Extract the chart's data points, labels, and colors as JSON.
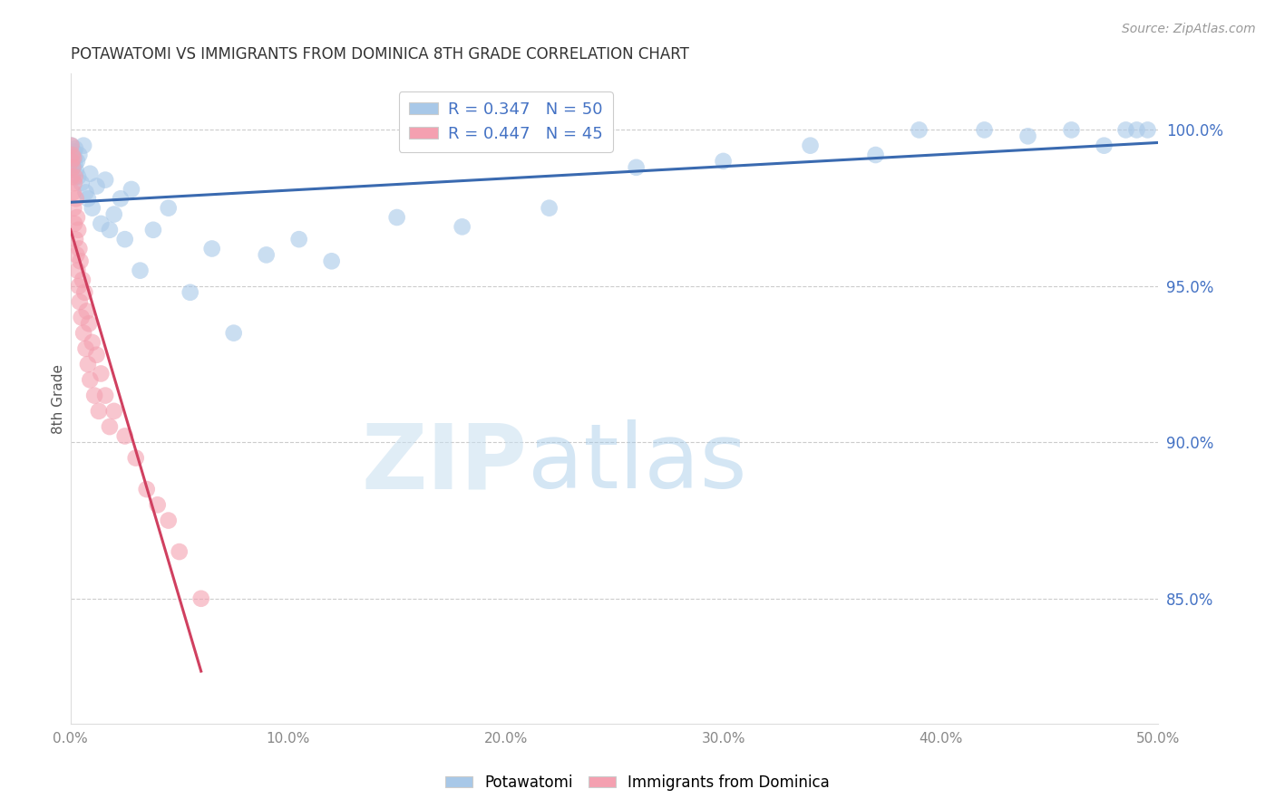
{
  "title": "POTAWATOMI VS IMMIGRANTS FROM DOMINICA 8TH GRADE CORRELATION CHART",
  "source": "Source: ZipAtlas.com",
  "ylabel": "8th Grade",
  "y_ticks": [
    85.0,
    90.0,
    95.0,
    100.0
  ],
  "x_min": 0.0,
  "x_max": 50.0,
  "y_min": 81.0,
  "y_max": 101.8,
  "blue_r": 0.347,
  "blue_n": 50,
  "pink_r": 0.447,
  "pink_n": 45,
  "blue_color": "#a8c8e8",
  "pink_color": "#f4a0b0",
  "blue_line_color": "#3a6ab0",
  "pink_line_color": "#d04060",
  "blue_scatter_x": [
    0.05,
    0.08,
    0.1,
    0.12,
    0.15,
    0.18,
    0.2,
    0.22,
    0.25,
    0.3,
    0.35,
    0.4,
    0.5,
    0.6,
    0.7,
    0.8,
    0.9,
    1.0,
    1.2,
    1.4,
    1.6,
    1.8,
    2.0,
    2.3,
    2.5,
    2.8,
    3.2,
    3.8,
    4.5,
    5.5,
    6.5,
    7.5,
    9.0,
    10.5,
    12.0,
    15.0,
    18.0,
    22.0,
    26.0,
    30.0,
    34.0,
    37.0,
    39.0,
    42.0,
    44.0,
    46.0,
    47.5,
    48.5,
    49.0,
    49.5
  ],
  "blue_scatter_y": [
    99.5,
    99.2,
    99.0,
    98.8,
    99.3,
    99.1,
    98.9,
    99.4,
    98.7,
    99.0,
    98.5,
    99.2,
    98.3,
    99.5,
    98.0,
    97.8,
    98.6,
    97.5,
    98.2,
    97.0,
    98.4,
    96.8,
    97.3,
    97.8,
    96.5,
    98.1,
    95.5,
    96.8,
    97.5,
    94.8,
    96.2,
    93.5,
    96.0,
    96.5,
    95.8,
    97.2,
    96.9,
    97.5,
    98.8,
    99.0,
    99.5,
    99.2,
    100.0,
    100.0,
    99.8,
    100.0,
    99.5,
    100.0,
    100.0,
    100.0
  ],
  "pink_scatter_x": [
    0.03,
    0.05,
    0.07,
    0.08,
    0.1,
    0.12,
    0.14,
    0.15,
    0.17,
    0.18,
    0.2,
    0.22,
    0.25,
    0.28,
    0.3,
    0.32,
    0.35,
    0.38,
    0.4,
    0.42,
    0.45,
    0.5,
    0.55,
    0.6,
    0.65,
    0.7,
    0.75,
    0.8,
    0.85,
    0.9,
    1.0,
    1.1,
    1.2,
    1.3,
    1.4,
    1.6,
    1.8,
    2.0,
    2.5,
    3.0,
    3.5,
    4.0,
    4.5,
    5.0,
    6.0
  ],
  "pink_scatter_y": [
    99.5,
    99.0,
    98.5,
    99.2,
    98.8,
    98.0,
    99.1,
    97.5,
    98.3,
    97.0,
    98.5,
    96.5,
    97.8,
    96.0,
    97.2,
    95.5,
    96.8,
    95.0,
    96.2,
    94.5,
    95.8,
    94.0,
    95.2,
    93.5,
    94.8,
    93.0,
    94.2,
    92.5,
    93.8,
    92.0,
    93.2,
    91.5,
    92.8,
    91.0,
    92.2,
    91.5,
    90.5,
    91.0,
    90.2,
    89.5,
    88.5,
    88.0,
    87.5,
    86.5,
    85.0
  ],
  "watermark_zip": "ZIP",
  "watermark_atlas": "atlas",
  "background_color": "#ffffff",
  "grid_color": "#cccccc",
  "x_tick_positions": [
    0,
    10,
    20,
    30,
    40,
    50
  ]
}
